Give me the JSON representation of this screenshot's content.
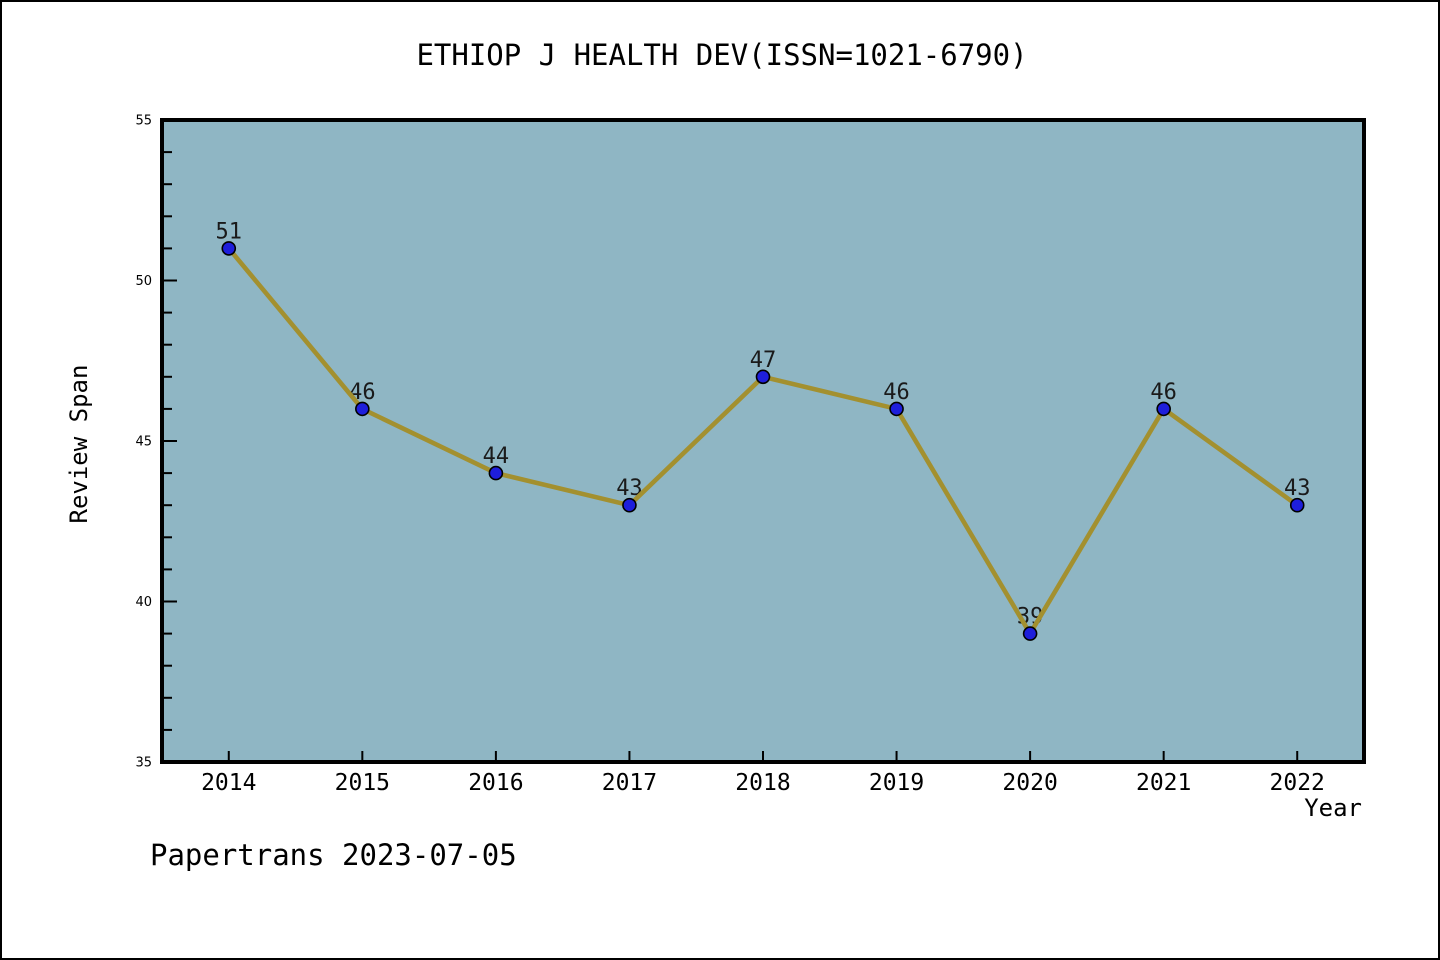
{
  "chart_data": {
    "type": "line",
    "title": "ETHIOP J HEALTH DEV(ISSN=1021-6790)",
    "xlabel": "Year",
    "ylabel": "Review Span",
    "categories": [
      2014,
      2015,
      2016,
      2017,
      2018,
      2019,
      2020,
      2021,
      2022
    ],
    "values": [
      51,
      46,
      44,
      43,
      47,
      46,
      39,
      46,
      43
    ],
    "point_labels": [
      "51",
      "46",
      "44",
      "43",
      "47",
      "46",
      "39",
      "46",
      "43"
    ],
    "ylim": [
      35,
      55
    ],
    "yticks": [
      35,
      40,
      45,
      50,
      55
    ],
    "y_minor_step": 1,
    "grid": false,
    "legend": null,
    "marker": "circle",
    "colors": {
      "plot_background": "#8FB6C4",
      "line": "#A3902F",
      "marker_fill": "#1E1EDB",
      "marker_edge": "#000000",
      "axis": "#000000",
      "text": "#000000",
      "data_label": "#1A1A1A"
    }
  },
  "footer": {
    "label": "Papertrans 2023-07-05"
  }
}
